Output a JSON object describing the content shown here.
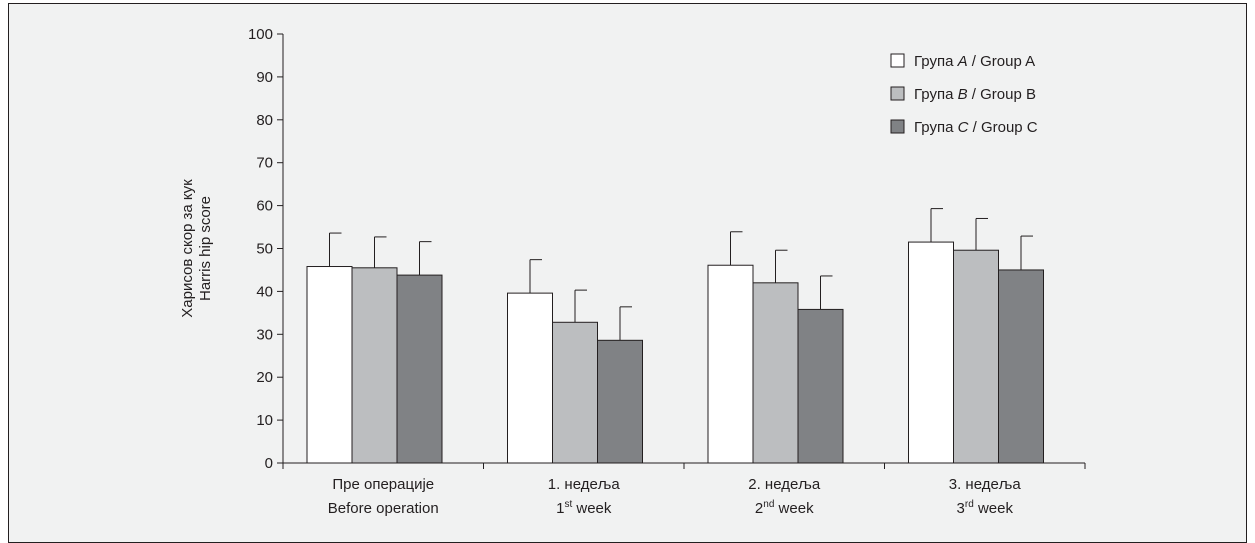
{
  "chart_data": {
    "type": "bar",
    "ylim": [
      0,
      100
    ],
    "yticks": [
      0,
      10,
      20,
      30,
      40,
      50,
      60,
      70,
      80,
      90,
      100
    ],
    "ylabel_line1": "Харисов скор за кук",
    "ylabel_line2": "Harris hip score",
    "categories": [
      {
        "line1": "Пре операције",
        "line2_main": "Before operation",
        "line2_sup": "",
        "line2_tail": ""
      },
      {
        "line1": "1. недеља",
        "line2_main": "1",
        "line2_sup": "st",
        "line2_tail": " week"
      },
      {
        "line1": "2. недеља",
        "line2_main": "2",
        "line2_sup": "nd",
        "line2_tail": " week"
      },
      {
        "line1": "3. недеља",
        "line2_main": "3",
        "line2_sup": "rd",
        "line2_tail": " week"
      }
    ],
    "series": [
      {
        "name_pre": "Група ",
        "name_letter": "A",
        "name_post": " / Group A",
        "color": "#ffffff",
        "values": [
          45.8,
          39.6,
          46.1,
          51.5
        ],
        "errors": [
          7.8,
          7.8,
          7.8,
          7.8
        ]
      },
      {
        "name_pre": "Група ",
        "name_letter": "B",
        "name_post": " / Group B",
        "color": "#bcbec0",
        "values": [
          45.5,
          32.8,
          42.0,
          49.6
        ],
        "errors": [
          7.2,
          7.5,
          7.6,
          7.4
        ]
      },
      {
        "name_pre": "Група ",
        "name_letter": "C",
        "name_post": " / Group C",
        "color": "#808285",
        "values": [
          43.8,
          28.6,
          35.8,
          45.0
        ],
        "errors": [
          7.8,
          7.8,
          7.8,
          7.9
        ]
      }
    ],
    "legend_position": "top-right",
    "grid": false
  }
}
